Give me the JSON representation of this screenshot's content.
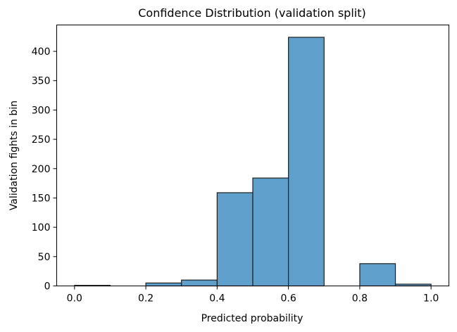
{
  "chart_data": {
    "type": "bar",
    "title": "Confidence Distribution (validation split)",
    "xlabel": "Predicted probability",
    "ylabel": "Validation fights in bin",
    "xlim": [
      -0.05,
      1.05
    ],
    "ylim": [
      0,
      445
    ],
    "x_ticks": [
      0.0,
      0.2,
      0.4,
      0.6,
      0.8,
      1.0
    ],
    "x_tick_labels": [
      "0.0",
      "0.2",
      "0.4",
      "0.6",
      "0.8",
      "1.0"
    ],
    "y_ticks": [
      0,
      50,
      100,
      150,
      200,
      250,
      300,
      350,
      400
    ],
    "y_tick_labels": [
      "0",
      "50",
      "100",
      "150",
      "200",
      "250",
      "300",
      "350",
      "400"
    ],
    "bin_edges": [
      0.0,
      0.1,
      0.2,
      0.3,
      0.4,
      0.5,
      0.6,
      0.7,
      0.8,
      0.9,
      1.0
    ],
    "values": [
      1,
      0,
      5,
      10,
      159,
      184,
      424,
      0,
      38,
      3
    ],
    "grid": false,
    "bar_color": "#5f9fcc",
    "edge_color": "#1f1f1f"
  }
}
